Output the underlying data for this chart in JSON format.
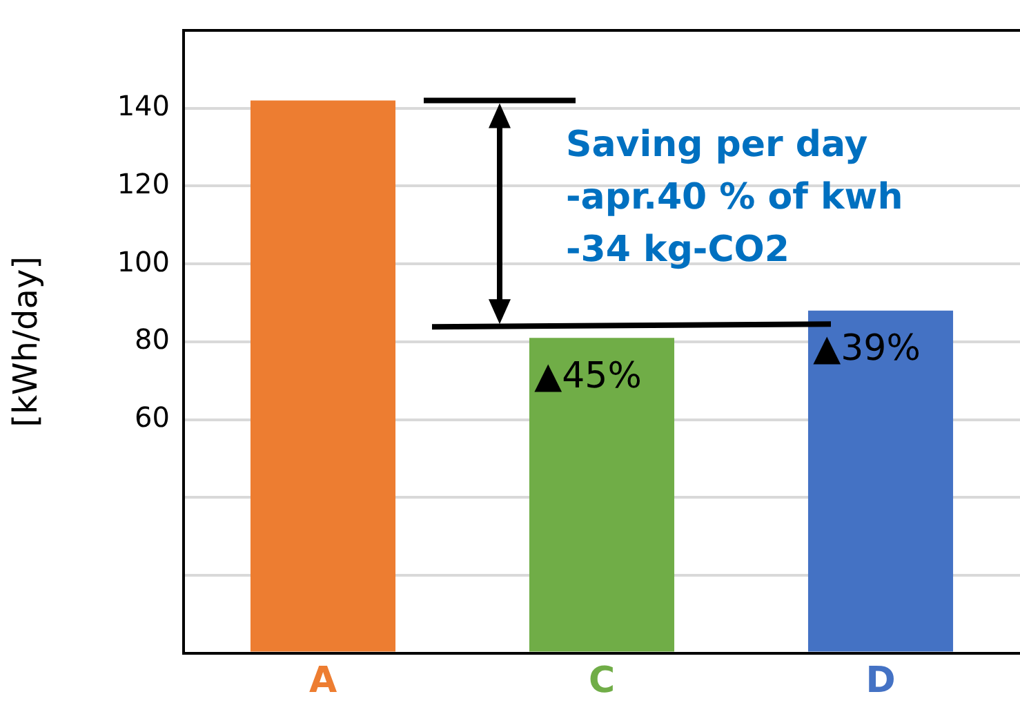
{
  "chart_data": {
    "type": "bar",
    "ylabel": "[kWh/day]",
    "categories": [
      "A",
      "C",
      "D"
    ],
    "values": [
      142,
      81,
      88
    ],
    "colors": [
      "#ed7d31",
      "#70ad47",
      "#4472c4"
    ],
    "ylim": [
      0,
      160
    ],
    "yticks": [
      {
        "value": 0,
        "label": null
      },
      {
        "value": 20,
        "label": null
      },
      {
        "value": 40,
        "label": null
      },
      60,
      80,
      100,
      120,
      140
    ],
    "grid": "y",
    "annotations": [
      "Saving per day\n-apr.40 % of kwh\n-34 kg-CO2",
      {
        "text": "▲45%",
        "x": "C",
        "y": 81
      },
      {
        "text": "▲39%",
        "x": "D",
        "y": 88
      }
    ]
  }
}
